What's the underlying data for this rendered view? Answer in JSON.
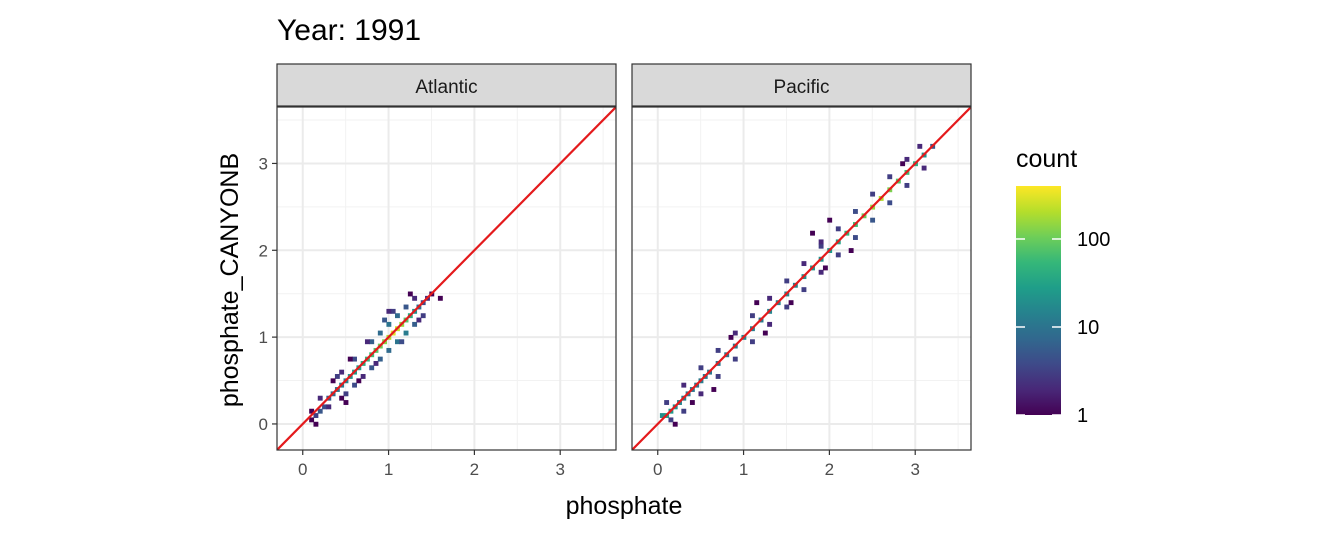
{
  "chart_data": {
    "type": "heatmap",
    "title": "Year: 1991",
    "xlabel": "phosphate",
    "ylabel": "phosphate_CANYONB",
    "xlim": [
      -0.3,
      3.65
    ],
    "ylim": [
      -0.3,
      3.65
    ],
    "x_ticks": [
      0,
      1,
      2,
      3
    ],
    "y_ticks": [
      0,
      1,
      2,
      3
    ],
    "grid": true,
    "reference_line": {
      "slope": 1,
      "intercept": 0,
      "color": "#e41a1c"
    },
    "legend": {
      "title": "count",
      "scale": "log10",
      "breaks": [
        1,
        10,
        100
      ],
      "range": [
        1,
        400
      ],
      "placement": "right",
      "palette": [
        "#440154",
        "#482878",
        "#3e4a89",
        "#31688e",
        "#26828e",
        "#1f9e89",
        "#35b779",
        "#6ece58",
        "#b5de2b",
        "#fde725"
      ]
    },
    "facets": [
      {
        "label": "Atlantic",
        "bins": [
          [
            0.1,
            0.05,
            1
          ],
          [
            0.15,
            0.1,
            3
          ],
          [
            0.2,
            0.15,
            5
          ],
          [
            0.25,
            0.2,
            4
          ],
          [
            0.3,
            0.3,
            6
          ],
          [
            0.35,
            0.35,
            8
          ],
          [
            0.4,
            0.4,
            10
          ],
          [
            0.45,
            0.45,
            12
          ],
          [
            0.5,
            0.5,
            15
          ],
          [
            0.55,
            0.55,
            20
          ],
          [
            0.6,
            0.6,
            25
          ],
          [
            0.65,
            0.65,
            30
          ],
          [
            0.7,
            0.7,
            40
          ],
          [
            0.75,
            0.75,
            50
          ],
          [
            0.8,
            0.8,
            60
          ],
          [
            0.85,
            0.85,
            80
          ],
          [
            0.9,
            0.9,
            100
          ],
          [
            0.95,
            0.95,
            130
          ],
          [
            1.0,
            1.0,
            200
          ],
          [
            1.05,
            1.05,
            300
          ],
          [
            1.1,
            1.1,
            250
          ],
          [
            1.15,
            1.15,
            150
          ],
          [
            1.2,
            1.2,
            80
          ],
          [
            1.25,
            1.25,
            40
          ],
          [
            1.3,
            1.3,
            20
          ],
          [
            1.35,
            1.35,
            8
          ],
          [
            1.4,
            1.4,
            4
          ],
          [
            1.45,
            1.45,
            2
          ],
          [
            1.5,
            1.5,
            1
          ],
          [
            1.6,
            1.45,
            1
          ],
          [
            0.3,
            0.2,
            2
          ],
          [
            0.5,
            0.35,
            3
          ],
          [
            0.6,
            0.45,
            4
          ],
          [
            0.8,
            0.65,
            5
          ],
          [
            0.9,
            0.75,
            6
          ],
          [
            1.0,
            0.85,
            8
          ],
          [
            1.1,
            0.95,
            10
          ],
          [
            1.2,
            1.05,
            12
          ],
          [
            1.3,
            1.15,
            6
          ],
          [
            1.4,
            1.25,
            3
          ],
          [
            0.2,
            0.3,
            2
          ],
          [
            0.4,
            0.55,
            3
          ],
          [
            0.6,
            0.75,
            4
          ],
          [
            0.8,
            0.95,
            6
          ],
          [
            0.9,
            1.05,
            8
          ],
          [
            1.0,
            1.15,
            10
          ],
          [
            1.1,
            1.25,
            8
          ],
          [
            1.2,
            1.35,
            5
          ],
          [
            1.3,
            1.45,
            2
          ],
          [
            0.45,
            0.3,
            1
          ],
          [
            0.7,
            0.55,
            2
          ],
          [
            0.55,
            0.75,
            1
          ],
          [
            0.75,
            0.95,
            2
          ],
          [
            0.85,
            0.7,
            2
          ],
          [
            1.05,
            1.3,
            3
          ],
          [
            1.25,
            1.5,
            1
          ],
          [
            0.5,
            0.25,
            1
          ],
          [
            0.35,
            0.5,
            1
          ],
          [
            0.95,
            1.2,
            5
          ],
          [
            1.15,
            0.95,
            4
          ],
          [
            0.1,
            0.15,
            1
          ],
          [
            0.65,
            0.5,
            1
          ],
          [
            0.45,
            0.6,
            2
          ],
          [
            1.35,
            1.2,
            2
          ],
          [
            1.0,
            1.3,
            2
          ],
          [
            0.15,
            0.0,
            1
          ]
        ]
      },
      {
        "label": "Pacific",
        "bins": [
          [
            0.05,
            0.1,
            20
          ],
          [
            0.1,
            0.1,
            30
          ],
          [
            0.15,
            0.15,
            25
          ],
          [
            0.2,
            0.2,
            20
          ],
          [
            0.25,
            0.25,
            15
          ],
          [
            0.3,
            0.3,
            12
          ],
          [
            0.35,
            0.35,
            10
          ],
          [
            0.4,
            0.4,
            10
          ],
          [
            0.45,
            0.45,
            10
          ],
          [
            0.5,
            0.5,
            12
          ],
          [
            0.55,
            0.55,
            12
          ],
          [
            0.6,
            0.6,
            10
          ],
          [
            0.7,
            0.7,
            10
          ],
          [
            0.8,
            0.8,
            10
          ],
          [
            0.9,
            0.9,
            12
          ],
          [
            1.0,
            1.0,
            15
          ],
          [
            1.1,
            1.1,
            12
          ],
          [
            1.2,
            1.2,
            12
          ],
          [
            1.3,
            1.3,
            15
          ],
          [
            1.4,
            1.4,
            15
          ],
          [
            1.5,
            1.5,
            15
          ],
          [
            1.6,
            1.6,
            15
          ],
          [
            1.7,
            1.7,
            20
          ],
          [
            1.8,
            1.8,
            20
          ],
          [
            1.9,
            1.9,
            20
          ],
          [
            2.0,
            2.0,
            25
          ],
          [
            2.1,
            2.1,
            30
          ],
          [
            2.2,
            2.2,
            50
          ],
          [
            2.3,
            2.3,
            60
          ],
          [
            2.4,
            2.4,
            100
          ],
          [
            2.5,
            2.5,
            150
          ],
          [
            2.6,
            2.6,
            200
          ],
          [
            2.7,
            2.7,
            120
          ],
          [
            2.8,
            2.8,
            80
          ],
          [
            2.9,
            2.9,
            60
          ],
          [
            3.0,
            3.0,
            40
          ],
          [
            3.1,
            3.1,
            20
          ],
          [
            3.2,
            3.2,
            5
          ],
          [
            0.15,
            0.05,
            3
          ],
          [
            0.3,
            0.15,
            3
          ],
          [
            0.5,
            0.35,
            2
          ],
          [
            0.7,
            0.55,
            3
          ],
          [
            0.9,
            0.75,
            3
          ],
          [
            1.1,
            0.95,
            3
          ],
          [
            1.3,
            1.15,
            2
          ],
          [
            1.5,
            1.35,
            3
          ],
          [
            1.7,
            1.55,
            3
          ],
          [
            1.9,
            1.75,
            2
          ],
          [
            2.1,
            1.95,
            3
          ],
          [
            2.3,
            2.15,
            4
          ],
          [
            2.5,
            2.35,
            5
          ],
          [
            2.7,
            2.55,
            4
          ],
          [
            2.9,
            2.75,
            3
          ],
          [
            3.1,
            2.95,
            2
          ],
          [
            0.1,
            0.25,
            3
          ],
          [
            0.3,
            0.45,
            2
          ],
          [
            0.5,
            0.65,
            3
          ],
          [
            0.7,
            0.85,
            3
          ],
          [
            0.9,
            1.05,
            2
          ],
          [
            1.1,
            1.25,
            3
          ],
          [
            1.3,
            1.45,
            2
          ],
          [
            1.5,
            1.65,
            3
          ],
          [
            1.7,
            1.85,
            2
          ],
          [
            1.9,
            2.05,
            3
          ],
          [
            2.1,
            2.25,
            3
          ],
          [
            2.3,
            2.45,
            4
          ],
          [
            2.5,
            2.65,
            3
          ],
          [
            2.7,
            2.85,
            3
          ],
          [
            2.9,
            3.05,
            2
          ],
          [
            3.05,
            3.2,
            2
          ],
          [
            1.9,
            2.1,
            2
          ],
          [
            1.95,
            1.8,
            1
          ],
          [
            1.25,
            1.05,
            1
          ],
          [
            0.65,
            0.4,
            1
          ],
          [
            0.85,
            1.0,
            1
          ],
          [
            1.55,
            1.4,
            1
          ],
          [
            0.4,
            0.25,
            1
          ],
          [
            2.25,
            2.0,
            1
          ],
          [
            2.85,
            3.0,
            1
          ],
          [
            1.15,
            1.4,
            1
          ],
          [
            0.2,
            0.0,
            1
          ],
          [
            1.8,
            2.2,
            1
          ],
          [
            2.0,
            2.35,
            1
          ]
        ]
      }
    ]
  }
}
